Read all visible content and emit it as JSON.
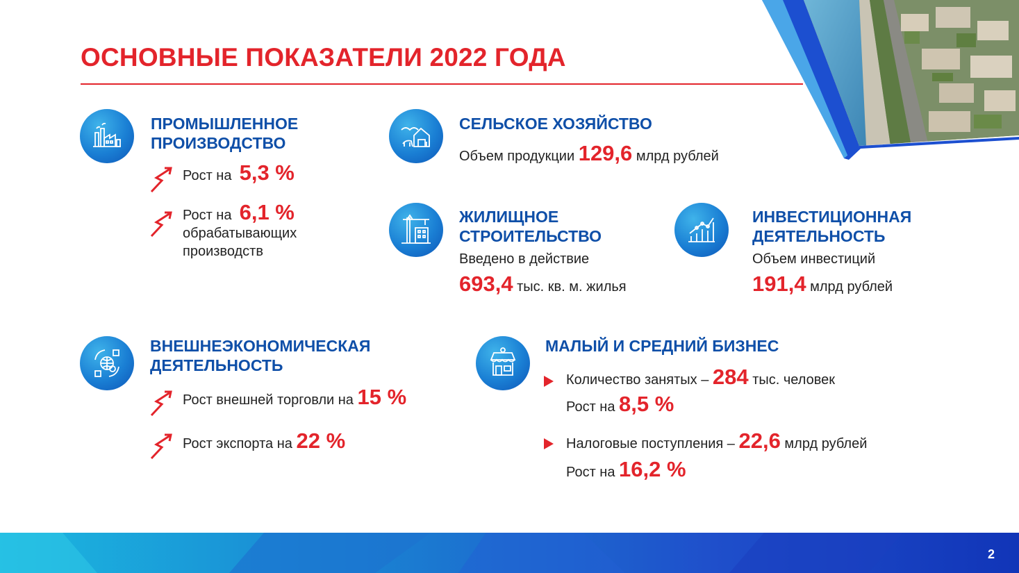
{
  "title": "ОСНОВНЫЕ ПОКАЗАТЕЛИ 2022 ГОДА",
  "page_number": "2",
  "colors": {
    "accent_red": "#e3242b",
    "heading_blue": "#0f4fa8",
    "icon_blue": "#1a7fd4"
  },
  "industry": {
    "icon": "factory-icon",
    "heading_line1": "ПРОМЫШЛЕННОЕ",
    "heading_line2": "ПРОИЗВОДСТВО",
    "item1_label": "Рост на",
    "item1_value": "5,3 %",
    "item2_label": "Рост на",
    "item2_value": "6,1 %",
    "item2_line2": "обрабатывающих",
    "item2_line3": "производств"
  },
  "agriculture": {
    "icon": "farm-icon",
    "heading": "СЕЛЬСКОЕ ХОЗЯЙСТВО",
    "label": "Объем продукции",
    "value": "129,6",
    "unit": "млрд рублей"
  },
  "housing": {
    "icon": "construction-crane-icon",
    "heading_line1": "ЖИЛИЩНОЕ",
    "heading_line2": "СТРОИТЕЛЬСТВО",
    "label": "Введено в действие",
    "value": "693,4",
    "unit": "тыс. кв. м. жилья"
  },
  "investment": {
    "icon": "growth-chart-icon",
    "heading_line1": "ИНВЕСТИЦИОННАЯ",
    "heading_line2": "ДЕЯТЕЛЬНОСТЬ",
    "label": "Объем инвестиций",
    "value": "191,4",
    "unit": "млрд рублей"
  },
  "foreign_trade": {
    "icon": "globe-trade-icon",
    "heading_line1": "ВНЕШНЕЭКОНОМИЧЕСКАЯ",
    "heading_line2": "ДЕЯТЕЛЬНОСТЬ",
    "item1_label": "Рост внешней торговли на",
    "item1_value": "15 %",
    "item2_label": "Рост экспорта на",
    "item2_value": "22 %"
  },
  "business": {
    "icon": "shop-icon",
    "heading": "МАЛЫЙ И СРЕДНИЙ БИЗНЕС",
    "item1_label": "Количество занятых –",
    "item1_value": "284",
    "item1_unit": "тыс. человек",
    "item1_growth_label": "Рост на",
    "item1_growth_value": "8,5 %",
    "item2_label": "Налоговые поступления –",
    "item2_value": "22,6",
    "item2_unit": "млрд рублей",
    "item2_growth_label": "Рост на",
    "item2_growth_value": "16,2 %"
  }
}
